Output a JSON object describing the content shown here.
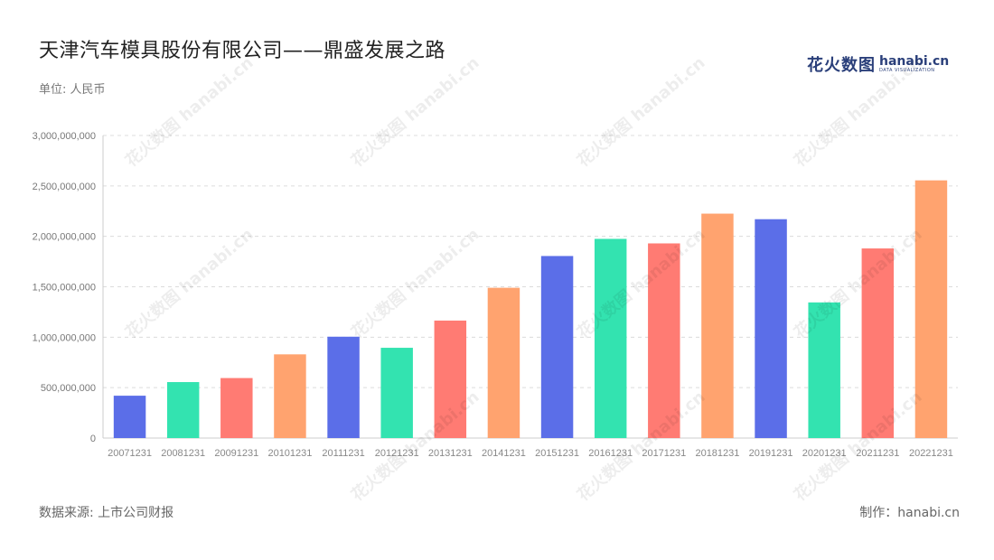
{
  "header": {
    "title": "天津汽车模具股份有限公司——鼎盛发展之路",
    "unit": "单位: 人民币"
  },
  "logo": {
    "cn": "花火数图",
    "en": "hanabi.cn",
    "sub": "DATA VISUALIZATION"
  },
  "footer": {
    "source": "数据来源: 上市公司财报",
    "credit": "制作：hanabi.cn"
  },
  "watermark": "花火数图 hanabi.cn",
  "colors": [
    "#5b6ee8",
    "#33e3b0",
    "#ff7b73",
    "#ffa36f"
  ],
  "chart_data": {
    "type": "bar",
    "title": "天津汽车模具股份有限公司——鼎盛发展之路",
    "categories": [
      "20071231",
      "20081231",
      "20091231",
      "20101231",
      "20111231",
      "20121231",
      "20131231",
      "20141231",
      "20151231",
      "20161231",
      "20171231",
      "20181231",
      "20191231",
      "20201231",
      "20211231",
      "20221231"
    ],
    "values": [
      420000000,
      555000000,
      595000000,
      830000000,
      1005000000,
      895000000,
      1165000000,
      1490000000,
      1805000000,
      1975000000,
      1930000000,
      2225000000,
      2170000000,
      1345000000,
      1880000000,
      2555000000
    ],
    "yticks": [
      "0",
      "500,000,000",
      "1,000,000,000",
      "1,500,000,000",
      "2,000,000,000",
      "2,500,000,000",
      "3,000,000,000"
    ],
    "ylim": [
      0,
      3000000000
    ],
    "grid": true
  }
}
